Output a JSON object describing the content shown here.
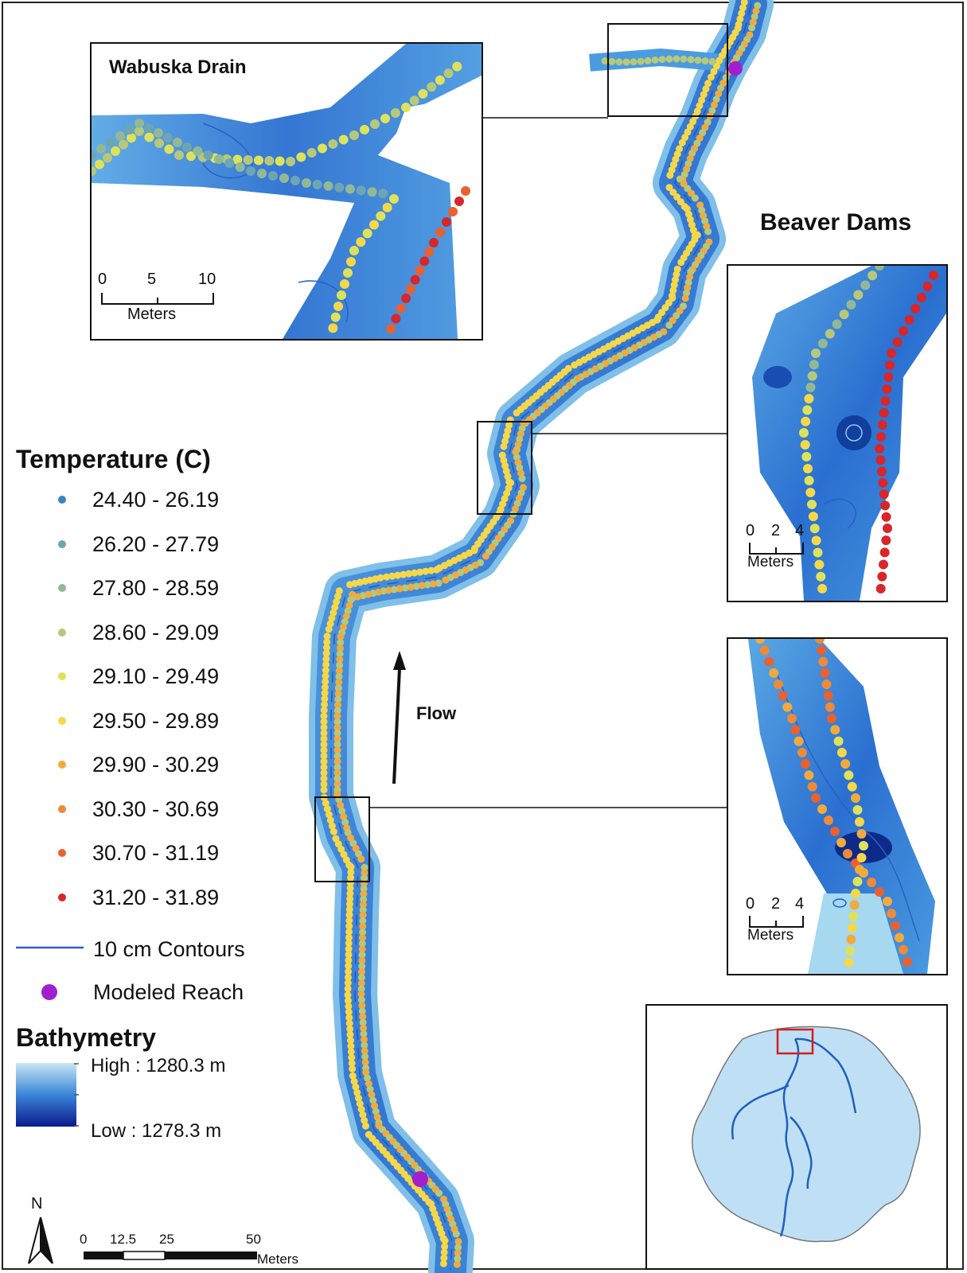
{
  "insets": {
    "wabuska": {
      "title": "Wabuska Drain",
      "scale_ticks": [
        "0",
        "5",
        "10"
      ],
      "scale_unit": "Meters"
    },
    "beaver_title": "Beaver Dams",
    "beaver1": {
      "scale_ticks": [
        "0",
        "2",
        "4"
      ],
      "scale_unit": "Meters"
    },
    "beaver2": {
      "scale_ticks": [
        "0",
        "2",
        "4"
      ],
      "scale_unit": "Meters"
    }
  },
  "flow_label": "Flow",
  "legend": {
    "temperature_title": "Temperature (C)",
    "classes": [
      {
        "range": "24.40 - 26.19",
        "color": "#3a86c0"
      },
      {
        "range": "26.20 - 27.79",
        "color": "#6fa5b2"
      },
      {
        "range": "27.80 - 28.59",
        "color": "#93b994"
      },
      {
        "range": "28.60 - 29.09",
        "color": "#b7c87a"
      },
      {
        "range": "29.10 - 29.49",
        "color": "#dde25a"
      },
      {
        "range": "29.50 - 29.89",
        "color": "#f5d74a"
      },
      {
        "range": "29.90 - 30.29",
        "color": "#f2aa3c"
      },
      {
        "range": "30.30 - 30.69",
        "color": "#ee8a38"
      },
      {
        "range": "30.70 - 31.19",
        "color": "#e8612e"
      },
      {
        "range": "31.20 - 31.89",
        "color": "#d8262a"
      }
    ],
    "contours_label": "10 cm Contours",
    "contours_color": "#2a5fc8",
    "reach_label": "Modeled Reach",
    "reach_color": "#a020d0",
    "bathymetry_title": "Bathymetry",
    "bathy_high": "High : 1280.3 m",
    "bathy_low": "Low : 1278.3 m",
    "bathy_high_color": "#c8e6f2",
    "bathy_low_color": "#0a1a8c"
  },
  "north_label": "N",
  "main_scale": {
    "ticks": [
      "0",
      "12.5",
      "25",
      "50"
    ],
    "unit": "Meters"
  },
  "locator": {
    "basin_color": "#bfe0f4",
    "stream_color": "#1f5fc0",
    "box_color": "#d21f1f"
  }
}
